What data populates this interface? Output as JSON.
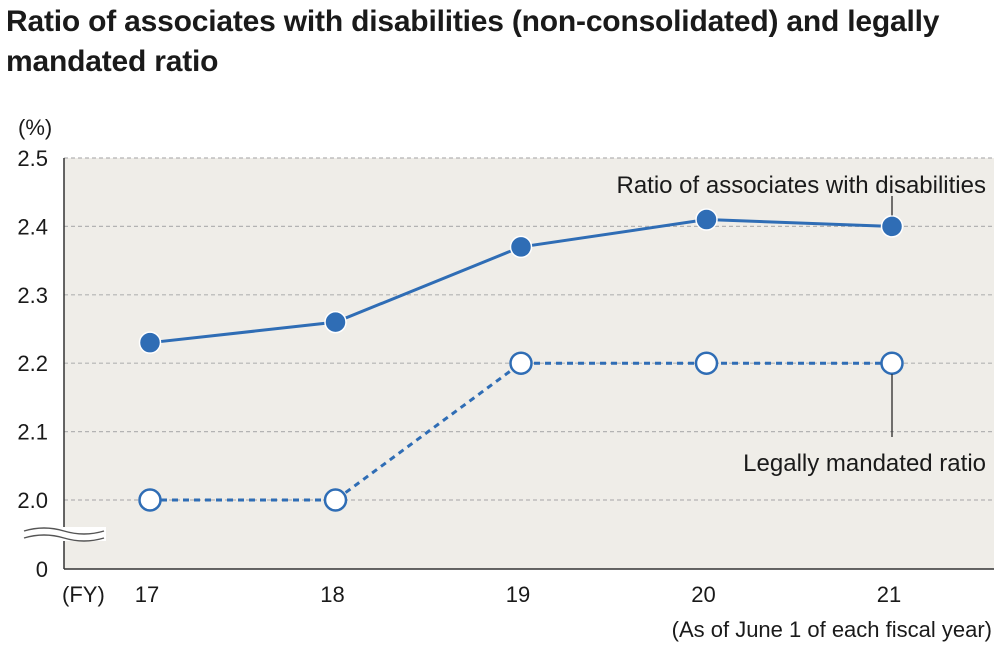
{
  "chart_data": {
    "type": "line",
    "title": "Ratio of associates with disabilities (non-consolidated) and legally mandated ratio",
    "ylabel": "(%)",
    "xlabel": "(FY)",
    "note": "(As of June 1 of each fiscal year)",
    "categories": [
      "17",
      "18",
      "19",
      "20",
      "21"
    ],
    "y_ticks": [
      "2.5",
      "2.4",
      "2.3",
      "2.2",
      "2.1",
      "2.0",
      "0"
    ],
    "ylim": [
      2.0,
      2.5
    ],
    "axis_break": true,
    "grid": true,
    "series": [
      {
        "name": "Ratio of associates with disabilities",
        "values": [
          2.23,
          2.26,
          2.37,
          2.41,
          2.4
        ],
        "style": "solid",
        "marker": "filled-circle",
        "color": "#2f6db5"
      },
      {
        "name": "Legally mandated ratio",
        "values": [
          2.0,
          2.0,
          2.2,
          2.2,
          2.2
        ],
        "style": "dashed",
        "marker": "open-circle",
        "color": "#2f6db5"
      }
    ]
  },
  "colors": {
    "plot_background": "#efede8",
    "series": "#2f6db5",
    "gridline": "#b3b3b3"
  }
}
